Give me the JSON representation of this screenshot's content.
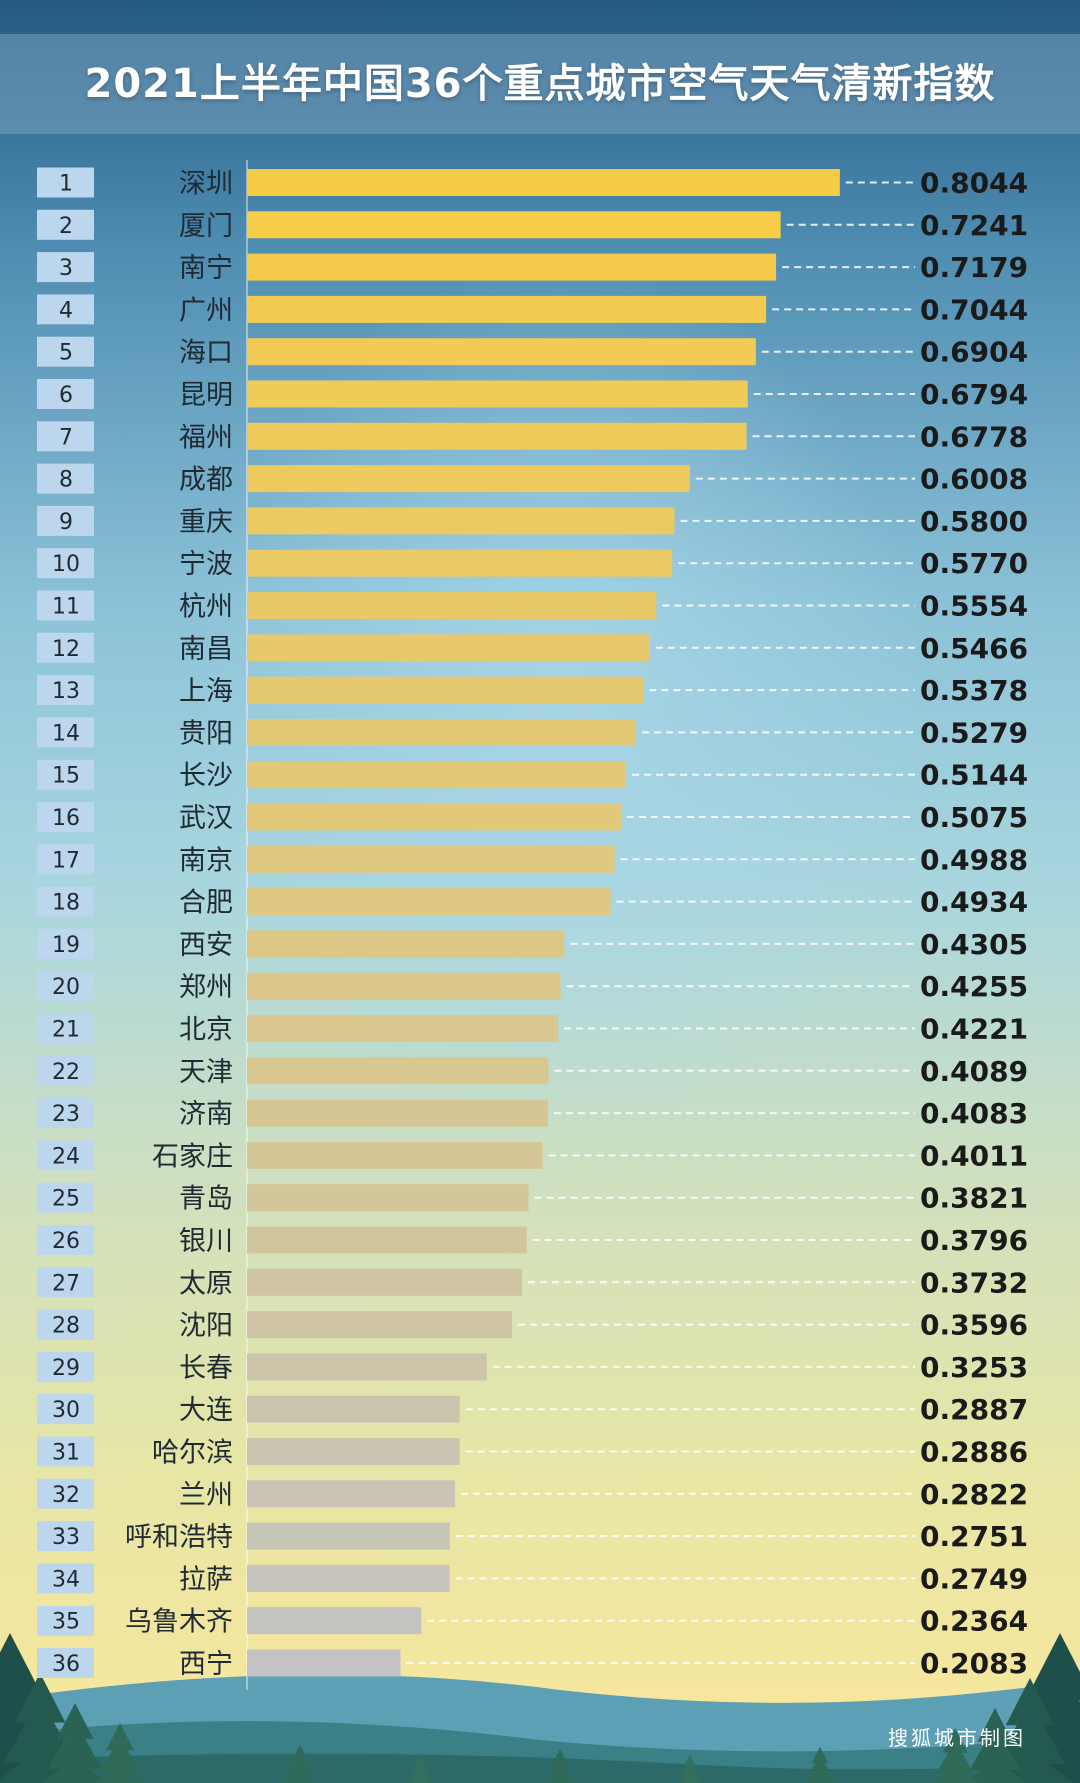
{
  "title": "2021上半年中国36个重点城市空气天气清新指数",
  "source": "搜狐城市制图",
  "colors": {
    "top": "#f7cc45",
    "bottom": "#c3c3c3"
  },
  "chart_data": {
    "type": "bar",
    "orientation": "horizontal",
    "title": "2021上半年中国36个重点城市空气天气清新指数",
    "xlim": [
      0,
      0.9
    ],
    "grid": false,
    "ranks": [
      "1",
      "2",
      "3",
      "4",
      "5",
      "6",
      "7",
      "8",
      "9",
      "10",
      "11",
      "12",
      "13",
      "14",
      "15",
      "16",
      "17",
      "18",
      "19",
      "20",
      "21",
      "22",
      "23",
      "24",
      "25",
      "26",
      "27",
      "28",
      "29",
      "30",
      "31",
      "32",
      "33",
      "34",
      "35",
      "36"
    ],
    "categories": [
      "深圳",
      "厦门",
      "南宁",
      "广州",
      "海口",
      "昆明",
      "福州",
      "成都",
      "重庆",
      "宁波",
      "杭州",
      "南昌",
      "上海",
      "贵阳",
      "长沙",
      "武汉",
      "南京",
      "合肥",
      "西安",
      "郑州",
      "北京",
      "天津",
      "济南",
      "石家庄",
      "青岛",
      "银川",
      "太原",
      "沈阳",
      "长春",
      "大连",
      "哈尔滨",
      "兰州",
      "呼和浩特",
      "拉萨",
      "乌鲁木齐",
      "西宁"
    ],
    "values": [
      0.8044,
      0.7241,
      0.7179,
      0.7044,
      0.6904,
      0.6794,
      0.6778,
      0.6008,
      0.58,
      0.577,
      0.5554,
      0.5466,
      0.5378,
      0.5279,
      0.5144,
      0.5075,
      0.4988,
      0.4934,
      0.4305,
      0.4255,
      0.4221,
      0.4089,
      0.4083,
      0.4011,
      0.3821,
      0.3796,
      0.3732,
      0.3596,
      0.3253,
      0.2887,
      0.2886,
      0.2822,
      0.2751,
      0.2749,
      0.2364,
      0.2083
    ],
    "labels": [
      "0.8044",
      "0.7241",
      "0.7179",
      "0.7044",
      "0.6904",
      "0.6794",
      "0.6778",
      "0.6008",
      "0.5800",
      "0.5770",
      "0.5554",
      "0.5466",
      "0.5378",
      "0.5279",
      "0.5144",
      "0.5075",
      "0.4988",
      "0.4934",
      "0.4305",
      "0.4255",
      "0.4221",
      "0.4089",
      "0.4083",
      "0.4011",
      "0.3821",
      "0.3796",
      "0.3732",
      "0.3596",
      "0.3253",
      "0.2887",
      "0.2886",
      "0.2822",
      "0.2751",
      "0.2749",
      "0.2364",
      "0.2083"
    ]
  }
}
